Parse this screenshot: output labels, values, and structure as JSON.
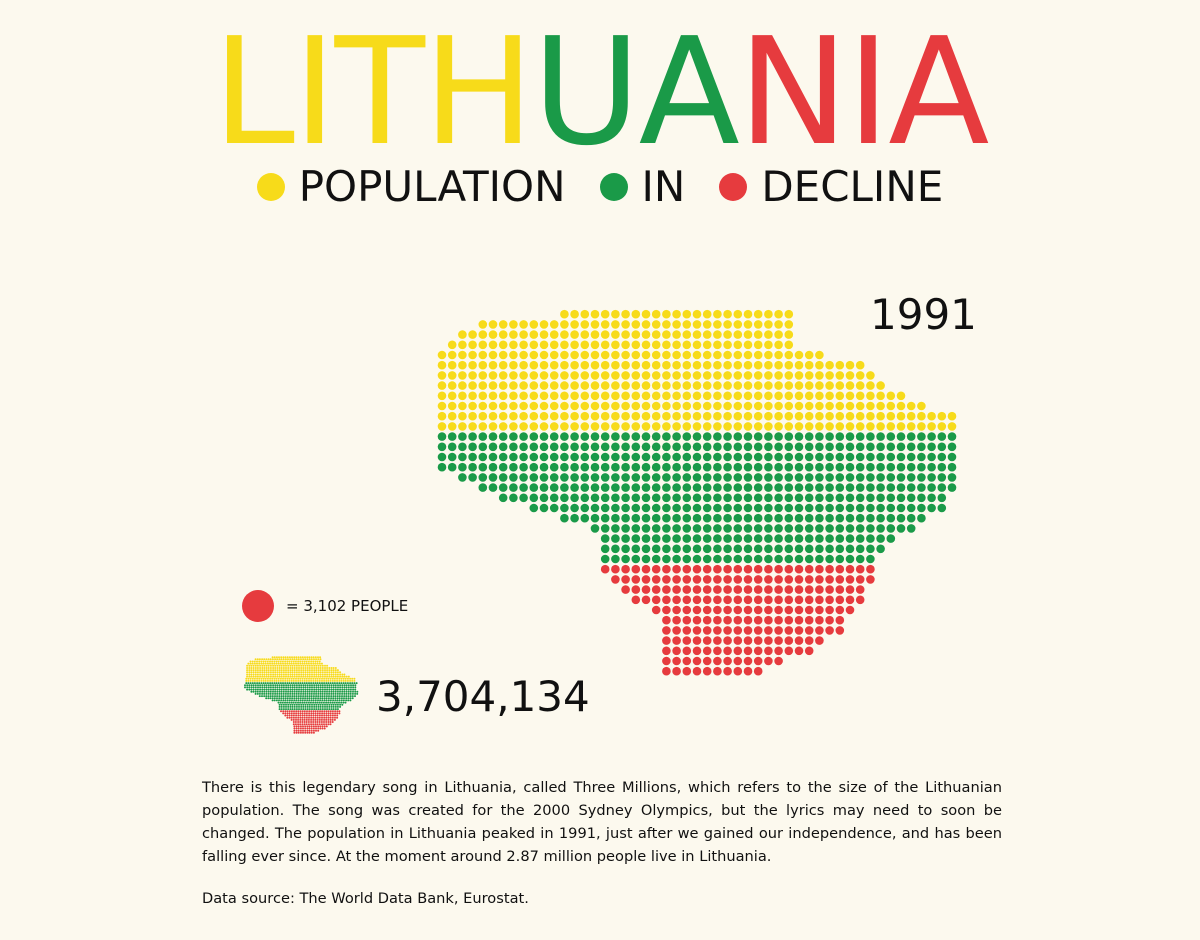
{
  "header": {
    "title_parts": [
      {
        "text": "LITH",
        "color": "#f7db1a"
      },
      {
        "text": "UA",
        "color": "#1a9a48"
      },
      {
        "text": "NIA",
        "color": "#e63b3e"
      }
    ],
    "subtitle": [
      {
        "text": "POPULATION",
        "dot_color": "#f7db1a"
      },
      {
        "text": "IN",
        "dot_color": "#1a9a48"
      },
      {
        "text": "DECLINE",
        "dot_color": "#e63b3e"
      }
    ]
  },
  "map": {
    "year": "1991",
    "band_colors": [
      "#f7db1a",
      "#1a9a48",
      "#e63b3e"
    ]
  },
  "legend": {
    "dot_color": "#e63b3e",
    "label": "= 3,102 PEOPLE"
  },
  "summary": {
    "total_population": "3,704,134"
  },
  "text": {
    "description": "There is this legendary song in Lithuania, called Three Millions, which refers to the size of the Lithuanian population. The song was created for the 2000 Sydney Olympics, but the lyrics may need to soon be changed. The population in Lithuania peaked in 1991, just after we gained our independence, and has been falling ever since. At the moment around 2.87 million people live in Lithuania.",
    "source": "Data source: The World Data Bank, Eurostat."
  },
  "colors": {
    "background": "#fcf9ee",
    "yellow": "#f7db1a",
    "green": "#1a9a48",
    "red": "#e63b3e"
  }
}
